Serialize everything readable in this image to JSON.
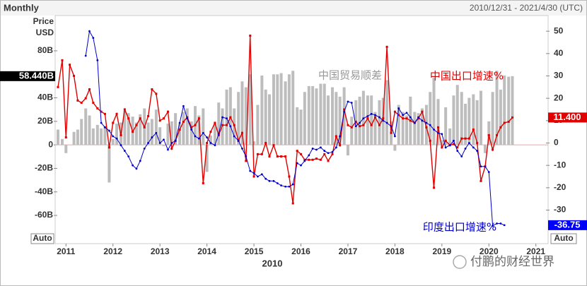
{
  "chart_data": {
    "type": "combo",
    "frequency": "Monthly",
    "date_range": "2010/12/31 - 2021/4/30 (UTC)",
    "ylabel": "Price",
    "yunit": "USD",
    "autoscale_left": "Auto",
    "autoscale_right": "Auto",
    "xlabel": "2010",
    "watermark": "付鹏的财经世界",
    "xlim": [
      2010.77,
      2021.26
    ],
    "xticks": [
      2011,
      2012,
      2013,
      2014,
      2015,
      2016,
      2017,
      2018,
      2019,
      2020,
      2021
    ],
    "ylim": [
      -84,
      110
    ],
    "yticks": [
      {
        "value": 80,
        "label": "80B"
      },
      {
        "value": 40,
        "label": "40B"
      },
      {
        "value": 20,
        "label": "20B"
      },
      0,
      {
        "value": -20,
        "label": "-20B"
      },
      {
        "value": -40,
        "label": "-40B"
      },
      {
        "value": -60,
        "label": "-60B"
      }
    ],
    "y2lim": [
      -45,
      57
    ],
    "y2ticks": [
      50,
      40,
      30,
      20,
      10,
      0,
      -10,
      -20,
      -30
    ],
    "x": [
      2010.83,
      2010.92,
      2011.0,
      2011.08,
      2011.17,
      2011.25,
      2011.33,
      2011.42,
      2011.5,
      2011.58,
      2011.67,
      2011.75,
      2011.83,
      2011.92,
      2012.0,
      2012.08,
      2012.17,
      2012.25,
      2012.33,
      2012.42,
      2012.5,
      2012.58,
      2012.67,
      2012.75,
      2012.83,
      2012.92,
      2013.0,
      2013.08,
      2013.17,
      2013.25,
      2013.33,
      2013.42,
      2013.5,
      2013.58,
      2013.67,
      2013.75,
      2013.83,
      2013.92,
      2014.0,
      2014.08,
      2014.17,
      2014.25,
      2014.33,
      2014.42,
      2014.5,
      2014.58,
      2014.67,
      2014.75,
      2014.83,
      2014.92,
      2015.0,
      2015.08,
      2015.17,
      2015.25,
      2015.33,
      2015.42,
      2015.5,
      2015.58,
      2015.67,
      2015.75,
      2015.83,
      2015.92,
      2016.0,
      2016.08,
      2016.17,
      2016.25,
      2016.33,
      2016.42,
      2016.5,
      2016.58,
      2016.67,
      2016.75,
      2016.83,
      2016.92,
      2017.0,
      2017.08,
      2017.17,
      2017.25,
      2017.33,
      2017.42,
      2017.5,
      2017.58,
      2017.67,
      2017.75,
      2017.83,
      2017.92,
      2018.0,
      2018.08,
      2018.17,
      2018.25,
      2018.33,
      2018.42,
      2018.5,
      2018.58,
      2018.67,
      2018.75,
      2018.83,
      2018.92,
      2019.0,
      2019.08,
      2019.17,
      2019.25,
      2019.33,
      2019.42,
      2019.5,
      2019.58,
      2019.67,
      2019.75,
      2019.83,
      2019.92,
      2020.0,
      2020.08,
      2020.17,
      2020.25,
      2020.33,
      2020.42,
      2020.5
    ],
    "series": [
      {
        "name": "中国贸易顺差",
        "kind": "bar",
        "axis": "y",
        "color": "#bdbdbd",
        "label_color": "#000000",
        "last_label": "58.440B",
        "values": [
          13,
          5,
          -7,
          0,
          11,
          13,
          22,
          31,
          25,
          14,
          17,
          14,
          16,
          -32,
          5,
          18,
          19,
          29,
          27,
          24,
          19,
          26,
          31,
          19,
          22,
          30,
          15,
          -1,
          18,
          20,
          27,
          18,
          28,
          31,
          20,
          33,
          25,
          31,
          -23,
          8,
          18,
          36,
          31,
          47,
          49,
          31,
          45,
          54,
          49,
          60,
          3,
          34,
          59,
          47,
          43,
          60,
          60,
          61,
          54,
          60,
          63,
          32,
          30,
          45,
          50,
          50,
          48,
          52,
          52,
          42,
          49,
          45,
          41,
          49,
          -9,
          24,
          38,
          41,
          46,
          42,
          42,
          28,
          38,
          40,
          55,
          20,
          -5,
          34,
          28,
          25,
          41,
          28,
          27,
          31,
          34,
          45,
          57,
          39,
          4,
          32,
          14,
          42,
          51,
          45,
          35,
          40,
          43,
          38,
          46,
          -7,
          20,
          45,
          63,
          47,
          59,
          58,
          58.44
        ]
      },
      {
        "name": "中国出口增速%",
        "kind": "line",
        "axis": "y2",
        "color": "#e00000",
        "label_color": "#e00000",
        "last_label": "11.400",
        "values": [
          25,
          37,
          2.5,
          35,
          30,
          19,
          18,
          20,
          24,
          18,
          15.5,
          14,
          13,
          -2,
          9,
          13,
          3.5,
          15,
          11,
          5,
          8,
          11,
          7,
          12,
          24,
          22,
          10,
          11,
          14,
          -2.5,
          1,
          6,
          9.5,
          11.5,
          7,
          8,
          11,
          -18,
          0,
          5,
          9,
          3.5,
          8,
          8,
          11.5,
          8,
          1,
          4.5,
          -8,
          48,
          -15,
          -5,
          -5,
          0,
          -6,
          -1,
          -6,
          -6,
          -6,
          -15,
          -27,
          -3.5,
          -5,
          -7.5,
          -7.5,
          -7.5,
          -7,
          -7.5,
          -5,
          -8,
          -5,
          3,
          -1,
          15,
          8,
          7,
          9.5,
          7.5,
          8,
          11,
          8,
          11.5,
          8,
          11,
          43,
          4.5,
          14,
          12.5,
          11,
          11,
          10,
          9,
          11,
          14,
          7,
          1,
          -20,
          7,
          -2,
          1,
          -1,
          -0.5,
          -2,
          2,
          2,
          2,
          6,
          0,
          -17,
          -10.5,
          3.5,
          -3,
          3.5,
          7,
          9,
          9.5,
          11.4
        ]
      },
      {
        "name": "印度出口增速%",
        "kind": "line",
        "axis": "y2",
        "color": "#0000cc",
        "label_color": "#0000ff",
        "last_label": "-36.75",
        "values": [
          null,
          null,
          null,
          null,
          null,
          null,
          null,
          39,
          50,
          47,
          37,
          9,
          7,
          5.5,
          3,
          2,
          -1,
          -3.5,
          -6,
          -10,
          -11.5,
          -8,
          -2.5,
          0,
          2.5,
          4.5,
          0,
          1.5,
          -3,
          0,
          1,
          9,
          16.5,
          11,
          6,
          3,
          2,
          4.5,
          2.5,
          0,
          -1,
          4,
          11.5,
          11,
          7.5,
          3,
          1,
          -2.5,
          -6,
          -12.5,
          -13.5,
          -15,
          -14,
          -16,
          -17,
          -17,
          -18,
          -19,
          -19.5,
          -19.5,
          -18.5,
          -9,
          -10,
          -8,
          -5.5,
          -2.5,
          -3,
          -2,
          -3.5,
          -4.5,
          -4,
          -2,
          3,
          14,
          18.5,
          18,
          7.5,
          9,
          11,
          12,
          13,
          12.5,
          11.5,
          10,
          9,
          7.5,
          3,
          15.5,
          12.5,
          13.5,
          11.5,
          9,
          11.5,
          10,
          9,
          8,
          6,
          4.5,
          4,
          -2,
          -1,
          1,
          -3.5,
          -6,
          -2.5,
          0,
          -2,
          -3.5,
          -10.5,
          -10.5,
          -13,
          -37,
          -36,
          -36,
          -36.75,
          null,
          null
        ]
      }
    ]
  }
}
